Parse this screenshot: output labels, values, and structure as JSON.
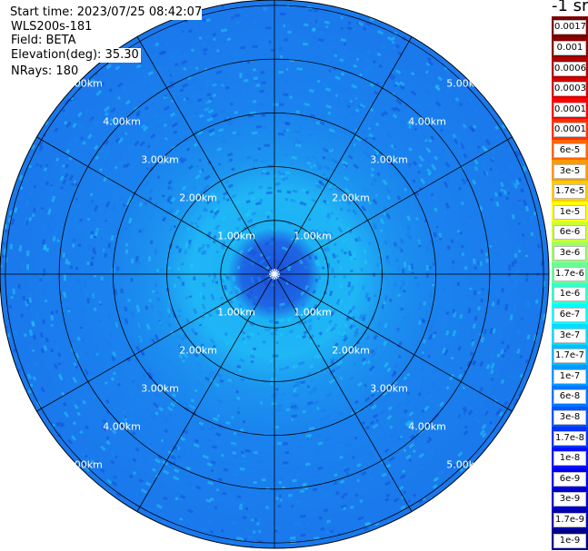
{
  "header": {
    "start_time": "Start time: 2023/07/25 08:42:07",
    "instrument": "WLS200s-181",
    "field": "Field: BETA",
    "elevation": "Elevation(deg): 35.30",
    "nrays": "NRays: 180"
  },
  "rings": {
    "labels": [
      "1.00km",
      "2.00km",
      "3.00km",
      "4.00km",
      "5.00km"
    ],
    "range_km": [
      1,
      2,
      3,
      4,
      5
    ],
    "max_range_km": 5.1
  },
  "radials_deg": [
    0,
    30,
    60,
    90,
    120,
    150,
    180,
    210,
    240,
    270,
    300,
    330
  ],
  "colorbar": {
    "unit": "-1 sr",
    "ticks": [
      "0.0017",
      "0.001",
      "0.0006",
      "0.0003",
      "0.00017",
      "0.0001",
      "6e-5",
      "3e-5",
      "1.7e-5",
      "1e-5",
      "6e-6",
      "3e-6",
      "1.7e-6",
      "1e-6",
      "6e-7",
      "3e-7",
      "1.7e-7",
      "1e-7",
      "6e-8",
      "3e-8",
      "1.7e-8",
      "1e-8",
      "6e-9",
      "3e-9",
      "1.7e-9",
      "1e-9"
    ],
    "colors": [
      "#7a0000",
      "#8b0000",
      "#b00000",
      "#d40000",
      "#ff0000",
      "#ff3300",
      "#ff6600",
      "#ff9900",
      "#ffcc00",
      "#ffff00",
      "#ccff33",
      "#99ff66",
      "#66ff99",
      "#33ffcc",
      "#00ffff",
      "#00ddff",
      "#00bbff",
      "#0099ff",
      "#0077ff",
      "#0055ff",
      "#0033ff",
      "#0011ff",
      "#0000ee",
      "#0000cc",
      "#0000aa",
      "#000088"
    ]
  },
  "colors": {
    "inner_core": "#1f5fe0",
    "band_light": "#1fb4f5",
    "band_mid": "#1a86f0",
    "outer": "#1a78ec",
    "speckle_dark": "#1350d8",
    "speckle_light": "#22c8f8"
  }
}
